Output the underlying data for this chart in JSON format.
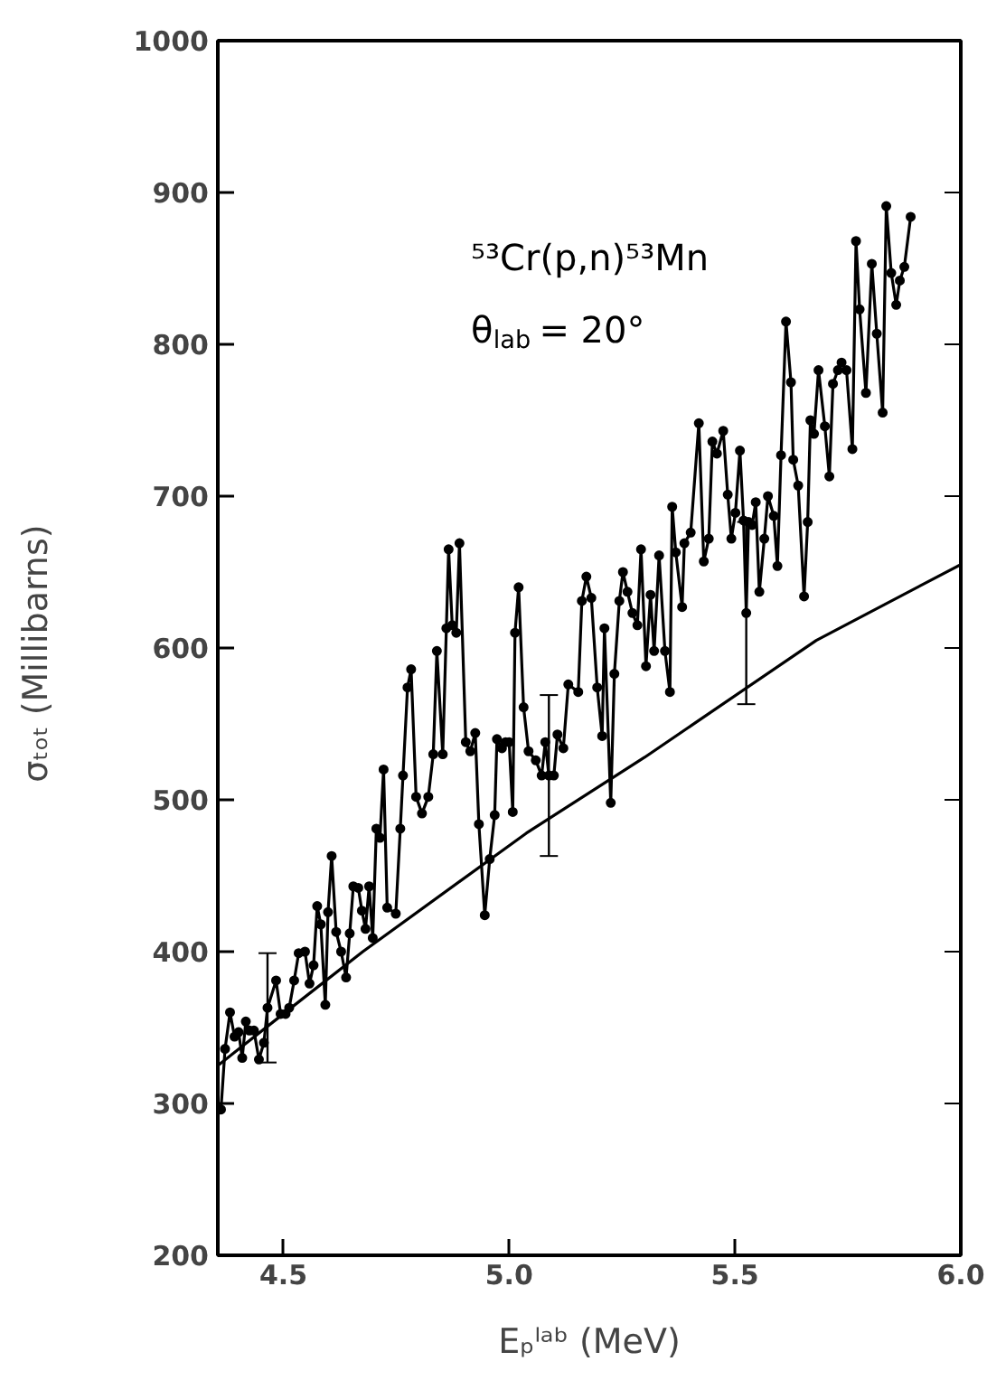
{
  "chart_data": {
    "type": "line",
    "xlabel": "Eₚˡᵃᵇ (MeV)",
    "ylabel": "σₜₒₜ  (Millibarns)",
    "annotations": [
      "⁵³Cr(p,n)⁵³Mn",
      "θ$_{lab}$ = 20°"
    ],
    "xlim": [
      4.355,
      6.0
    ],
    "ylim": [
      200,
      1000
    ],
    "xticks": [
      4.5,
      {
        "value": 5,
        "label": "5.0"
      },
      5.5,
      {
        "value": 6,
        "label": "6.0"
      }
    ],
    "yticks": [
      200,
      300,
      400,
      500,
      600,
      700,
      800,
      900,
      1000
    ],
    "grid": false,
    "line_style": "solid",
    "series": [
      {
        "color": "#000000",
        "marker": "circle",
        "x": [
          4.362,
          4.371,
          4.382,
          4.392,
          4.401,
          4.409,
          4.417,
          4.425,
          4.435,
          4.446,
          4.457,
          4.465,
          4.484,
          4.494,
          4.505,
          4.513,
          4.524,
          4.534,
          4.548,
          4.558,
          4.567,
          4.575,
          4.583,
          4.593,
          4.599,
          4.607,
          4.617,
          4.628,
          4.639,
          4.647,
          4.655,
          4.666,
          4.674,
          4.682,
          4.69,
          4.698,
          4.706,
          4.714,
          4.722,
          4.73,
          4.749,
          4.759,
          4.765,
          4.775,
          4.783,
          4.794,
          4.807,
          4.821,
          4.832,
          4.84,
          4.853,
          4.861,
          4.866,
          4.874,
          4.883,
          4.89,
          4.904,
          4.914,
          4.925,
          4.933,
          4.946,
          4.957,
          4.968,
          4.973,
          4.984,
          4.992,
          5.0,
          5.008,
          5.013,
          5.021,
          5.032,
          5.043,
          5.059,
          5.072,
          5.08,
          5.088,
          5.099,
          5.107,
          5.12,
          5.131,
          5.153,
          5.161,
          5.171,
          5.182,
          5.195,
          5.206,
          5.211,
          5.225,
          5.233,
          5.244,
          5.252,
          5.262,
          5.273,
          5.284,
          5.292,
          5.303,
          5.313,
          5.321,
          5.332,
          5.345,
          5.356,
          5.361,
          5.369,
          5.383,
          5.388,
          5.402,
          5.42,
          5.431,
          5.442,
          5.45,
          5.46,
          5.474,
          5.484,
          5.492,
          5.501,
          5.511,
          5.519,
          5.525,
          5.53,
          5.538,
          5.546,
          5.554,
          5.565,
          5.573,
          5.586,
          5.594,
          5.602,
          5.613,
          5.624,
          5.629,
          5.64,
          5.653,
          5.661,
          5.667,
          5.675,
          5.685,
          5.699,
          5.709,
          5.717,
          5.728,
          5.736,
          5.747,
          5.76,
          5.768,
          5.776,
          5.79,
          5.803,
          5.814,
          5.827,
          5.835,
          5.846,
          5.857,
          5.865,
          5.875,
          5.889
        ],
        "values": [
          296,
          336,
          360,
          344,
          347,
          330,
          354,
          348,
          348,
          329,
          340,
          363,
          381,
          359,
          359,
          363,
          381,
          399,
          400,
          379,
          391,
          430,
          418,
          365,
          426,
          463,
          413,
          400,
          383,
          412,
          443,
          442,
          427,
          415,
          443,
          409,
          481,
          475,
          520,
          429,
          425,
          481,
          516,
          574,
          586,
          502,
          491,
          502,
          530,
          598,
          530,
          613,
          665,
          615,
          610,
          669,
          538,
          532,
          544,
          484,
          424,
          461,
          490,
          540,
          534,
          538,
          538,
          492,
          610,
          640,
          561,
          532,
          526,
          516,
          538,
          516,
          516,
          543,
          534,
          576,
          571,
          631,
          647,
          633,
          574,
          542,
          613,
          498,
          583,
          631,
          650,
          637,
          623,
          615,
          665,
          588,
          635,
          598,
          661,
          598,
          571,
          693,
          663,
          627,
          669,
          676,
          748,
          657,
          672,
          736,
          728,
          743,
          701,
          672,
          689,
          730,
          684,
          623,
          683,
          681,
          696,
          637,
          672,
          700,
          687,
          654,
          727,
          815,
          775,
          724,
          707,
          634,
          683,
          750,
          741,
          783,
          746,
          713,
          774,
          783,
          788,
          783,
          731,
          868,
          823,
          768,
          853,
          807,
          755,
          891,
          847,
          826,
          842,
          851,
          884
        ],
        "errors": [
          null,
          null,
          null,
          null,
          null,
          null,
          null,
          null,
          null,
          null,
          null,
          36,
          null,
          null,
          null,
          null,
          null,
          null,
          null,
          null,
          null,
          null,
          null,
          null,
          null,
          null,
          null,
          null,
          null,
          null,
          null,
          null,
          null,
          null,
          null,
          null,
          null,
          null,
          null,
          null,
          null,
          null,
          null,
          null,
          null,
          null,
          null,
          null,
          null,
          null,
          null,
          null,
          null,
          null,
          null,
          null,
          null,
          null,
          null,
          null,
          null,
          null,
          null,
          null,
          null,
          null,
          null,
          null,
          null,
          null,
          null,
          null,
          null,
          null,
          null,
          53,
          null,
          null,
          null,
          null,
          null,
          null,
          null,
          null,
          null,
          null,
          null,
          null,
          null,
          null,
          null,
          null,
          null,
          null,
          null,
          null,
          null,
          null,
          null,
          null,
          null,
          null,
          null,
          null,
          null,
          null,
          null,
          null,
          null,
          null,
          null,
          null,
          null,
          null,
          null,
          null,
          null,
          60,
          null,
          null,
          null,
          null,
          null,
          null,
          null,
          null,
          null,
          null,
          null,
          null,
          null,
          null,
          null,
          null,
          null,
          null,
          null,
          null,
          null,
          null,
          null,
          null,
          null,
          null,
          null,
          null,
          null,
          null,
          null,
          null,
          null,
          null,
          null,
          null,
          null
        ]
      },
      {
        "color": "#000000",
        "marker": "none",
        "x": [
          4.355,
          4.5,
          4.676,
          5.038,
          5.3,
          5.68,
          6.0
        ],
        "values": [
          325,
          359,
          400,
          478,
          528,
          605,
          655
        ]
      }
    ]
  }
}
